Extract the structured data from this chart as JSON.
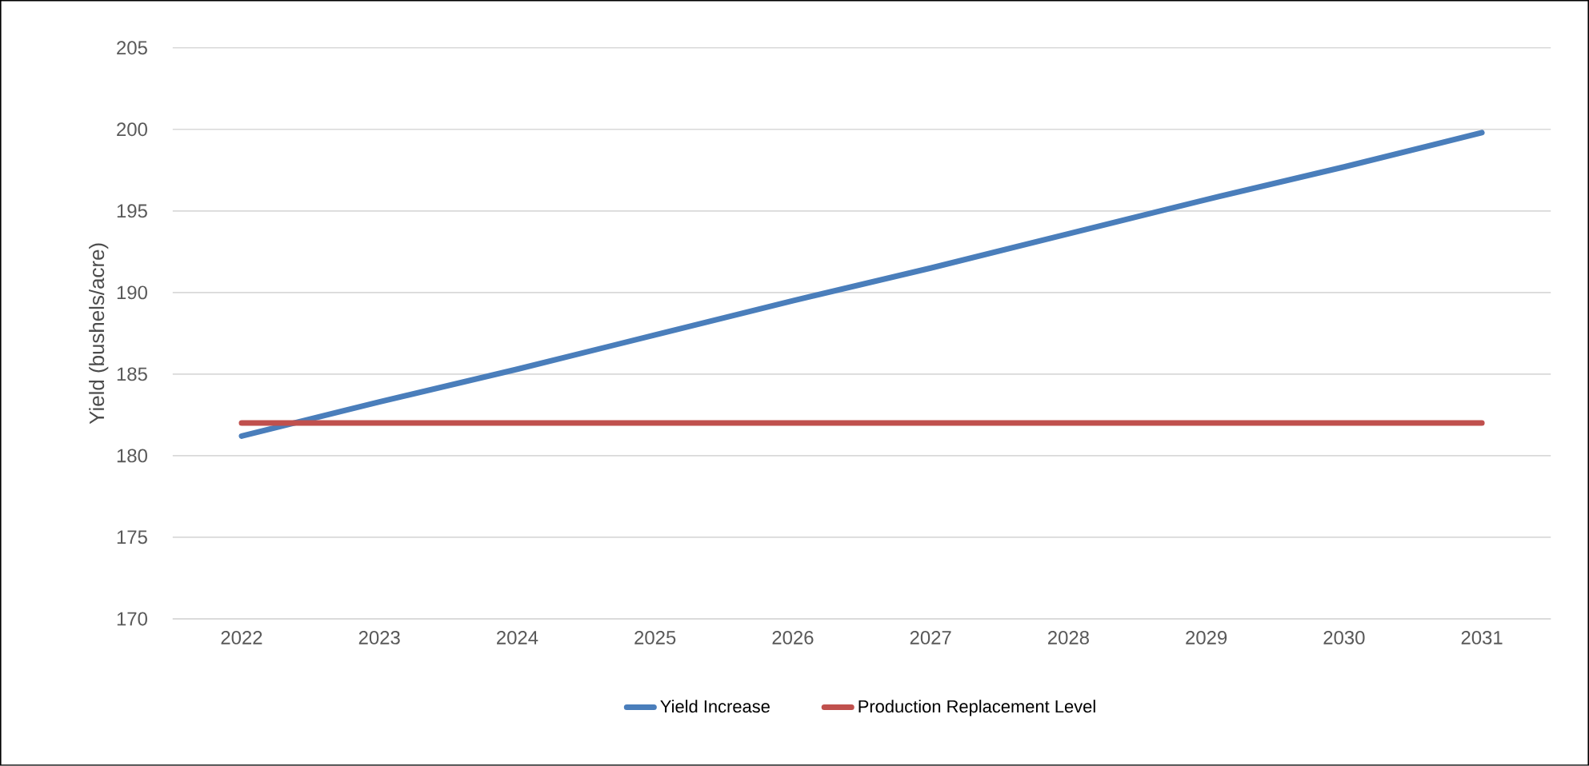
{
  "chart_data": {
    "type": "line",
    "ylabel": "Yield (bushels/acre)",
    "categories": [
      "2022",
      "2023",
      "2024",
      "2025",
      "2026",
      "2027",
      "2028",
      "2029",
      "2030",
      "2031"
    ],
    "series": [
      {
        "name": "Yield Increase",
        "color": "#4a7ebb",
        "values": [
          181.2,
          183.3,
          185.3,
          187.4,
          189.5,
          191.5,
          193.6,
          195.7,
          197.7,
          199.8
        ]
      },
      {
        "name": "Production Replacement Level",
        "color": "#c0504d",
        "values": [
          182,
          182,
          182,
          182,
          182,
          182,
          182,
          182,
          182,
          182
        ]
      }
    ],
    "ylim": [
      170,
      205
    ],
    "yticks": [
      170,
      175,
      180,
      185,
      190,
      195,
      200,
      205
    ],
    "grid": "y",
    "legend": "bottom",
    "marker": "none",
    "line_style": "solid"
  }
}
